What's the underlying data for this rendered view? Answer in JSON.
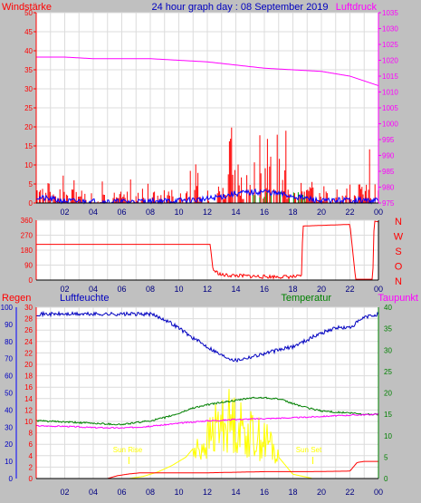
{
  "chart_data": [
    {
      "type": "line",
      "id": "wind",
      "title": "24 hour graph day : 08 September 2019",
      "left_label": "Windstärke",
      "right_label": "Luftdruck",
      "x_ticks": [
        "02",
        "04",
        "06",
        "08",
        "10",
        "12",
        "14",
        "16",
        "18",
        "20",
        "22",
        "00"
      ],
      "y_left_ticks": [
        "0",
        "5",
        "10",
        "15",
        "20",
        "25",
        "30",
        "35",
        "40",
        "45",
        "50"
      ],
      "y_left_range": [
        0,
        50
      ],
      "y_right_ticks": [
        "975",
        "980",
        "985",
        "990",
        "995",
        "1000",
        "1005",
        "1010",
        "1015",
        "1020",
        "1025",
        "1030",
        "1035"
      ],
      "y_right_range": [
        975,
        1035
      ],
      "colors": {
        "wind_gust": "#ff0000",
        "wind_avg": "#0000ff",
        "pressure": "#ff00ff",
        "gust_green": "#00a000"
      },
      "series": [
        {
          "name": "",
          "x_hours": [
            0,
            2,
            4,
            6,
            8,
            10,
            12,
            14,
            16,
            18,
            20,
            22,
            24
          ],
          "values": [
            1021,
            1021,
            1020.5,
            1020.5,
            1020.5,
            1020,
            1019.5,
            1018.5,
            1017.5,
            1017,
            1016.5,
            1015,
            1012
          ]
        }
      ]
    },
    {
      "type": "line",
      "id": "direction",
      "y_left_ticks": [
        "0",
        "90",
        "180",
        "270",
        "360"
      ],
      "y_range": [
        0,
        360
      ],
      "right_labels": [
        "N",
        "W",
        "S",
        "O",
        "N"
      ],
      "color": "#ff0000",
      "series": [
        {
          "name": "",
          "x_hours": [
            0,
            12.2,
            12.4,
            13,
            16,
            18.6,
            18.7,
            22,
            22.4,
            23.6,
            23.7,
            24
          ],
          "values": [
            215,
            215,
            60,
            30,
            20,
            20,
            325,
            335,
            5,
            5,
            355,
            350
          ]
        }
      ]
    },
    {
      "type": "line",
      "id": "weather",
      "labels": {
        "rain": "Regen",
        "humidity": "Luftfeuchte",
        "temperature": "Temperatur",
        "dewpoint": "Taupunkt"
      },
      "annotations": {
        "sunrise": "Sun Rise",
        "sunset": "Sun Set",
        "sunrise_hour": 6.5,
        "sunset_hour": 19.4
      },
      "y_rain_ticks": [
        "0",
        "2",
        "4",
        "6",
        "8",
        "10",
        "12",
        "14",
        "16",
        "18",
        "20",
        "22",
        "24",
        "26",
        "28",
        "30"
      ],
      "y_rain_range": [
        0,
        30
      ],
      "y_hum_ticks": [
        "0",
        "10",
        "20",
        "30",
        "40",
        "50",
        "60",
        "70",
        "80",
        "90",
        "100"
      ],
      "y_hum_range": [
        0,
        100
      ],
      "y_temp_ticks": [
        "0",
        "5",
        "10",
        "15",
        "20",
        "25",
        "30",
        "35",
        "40"
      ],
      "y_temp_range": [
        0,
        40
      ],
      "colors": {
        "rain": "#ff0000",
        "humidity": "#0000c0",
        "temperature": "#008000",
        "dewpoint": "#ff00ff",
        "solar": "#ffff00",
        "rain_axis": "#0000ff"
      },
      "series": [
        {
          "name": "Luftfeuchte",
          "x_hours": [
            0,
            4,
            8,
            9,
            10,
            11,
            12,
            13,
            14,
            15,
            16,
            17,
            18,
            19,
            20,
            21,
            22,
            23,
            24
          ],
          "values": [
            96,
            96,
            96,
            93,
            88,
            82,
            77,
            72,
            69,
            71,
            73,
            75,
            77,
            81,
            85,
            88,
            88,
            94,
            96
          ]
        },
        {
          "name": "Temperatur",
          "x_hours": [
            0,
            2,
            4,
            6,
            8,
            9,
            10,
            11,
            12,
            13,
            14,
            15,
            16,
            17,
            18,
            19,
            20,
            21,
            22,
            23,
            24
          ],
          "values": [
            13.5,
            13.2,
            12.9,
            12.6,
            13.5,
            14.2,
            15.2,
            16.5,
            17.2,
            17.8,
            18.2,
            18.8,
            18.9,
            18.6,
            17.5,
            16.5,
            15.8,
            15.5,
            15.3,
            15,
            15
          ]
        },
        {
          "name": "Taupunkt",
          "x_hours": [
            0,
            2,
            4,
            6,
            8,
            10,
            12,
            13,
            14,
            16,
            18,
            20,
            22,
            24
          ],
          "values": [
            12.3,
            12.2,
            11.9,
            11.8,
            12.2,
            12.9,
            13.5,
            13.6,
            13.8,
            14,
            14.2,
            14.5,
            14.8,
            15
          ]
        },
        {
          "name": "Regen",
          "x_hours": [
            0,
            5,
            5.7,
            6.5,
            7.3,
            12,
            16,
            19,
            22,
            22.5,
            23,
            24
          ],
          "values": [
            0,
            0,
            0.5,
            0.8,
            1,
            1,
            1.2,
            1.2,
            1.3,
            2.8,
            3,
            3
          ]
        },
        {
          "name": "",
          "x_hours": [
            0,
            6.5,
            7.5,
            8.5,
            9.5,
            10.5,
            11,
            11.5,
            12,
            12.5,
            13,
            13.5,
            14,
            14.5,
            15,
            15.5,
            16,
            16.5,
            17,
            17.5,
            18,
            19,
            19.4,
            24
          ],
          "values": [
            0,
            0,
            0.5,
            1.5,
            3,
            5,
            7,
            9,
            11,
            14,
            16,
            17,
            16,
            14,
            13,
            12,
            11,
            10,
            5,
            3,
            1,
            0.3,
            0,
            0
          ]
        }
      ]
    }
  ]
}
